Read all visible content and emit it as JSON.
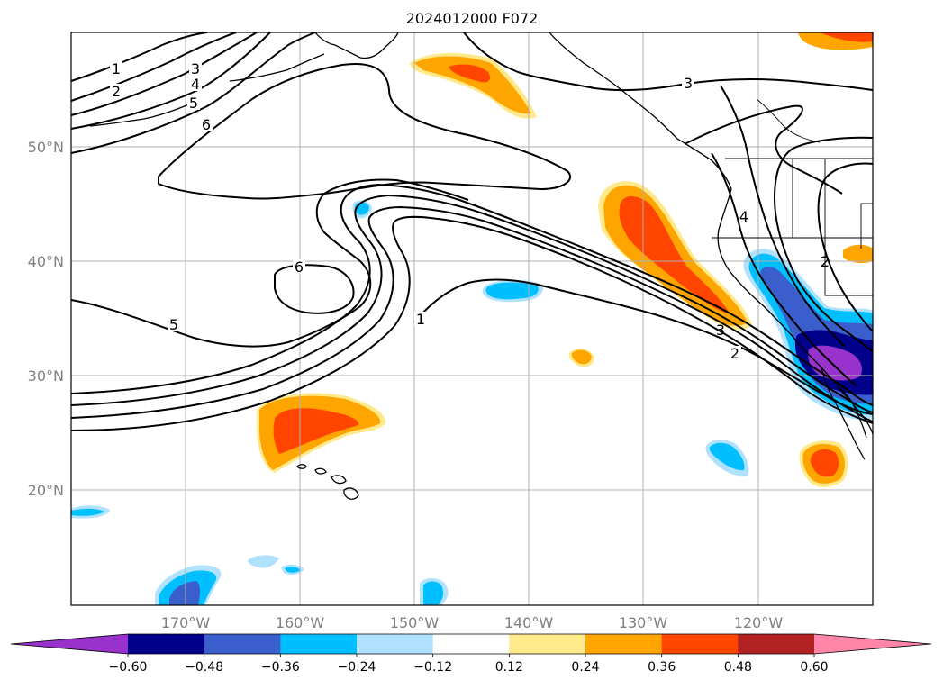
{
  "title": "2024012000 F072",
  "lat_labels": [
    "50°N",
    "40°N",
    "30°N",
    "20°N"
  ],
  "lon_labels": [
    "170°W",
    "160°W",
    "150°W",
    "140°W",
    "130°W",
    "120°W"
  ],
  "contour_labels": [
    "1",
    "2",
    "3",
    "4",
    "5",
    "6",
    "6",
    "5",
    "1",
    "3",
    "2",
    "3",
    "4",
    "2"
  ],
  "colorbar": {
    "ticks": [
      "−0.60",
      "−0.48",
      "−0.36",
      "−0.24",
      "−0.12",
      "0.12",
      "0.24",
      "0.36",
      "0.48",
      "0.60"
    ],
    "colors": [
      "#9932cc",
      "#00008b",
      "#3a5fcd",
      "#00bfff",
      "#b0e2ff",
      "#ffffff",
      "#ffe98a",
      "#ffa500",
      "#ff4500",
      "#b22222",
      "#ff86a8"
    ]
  }
}
